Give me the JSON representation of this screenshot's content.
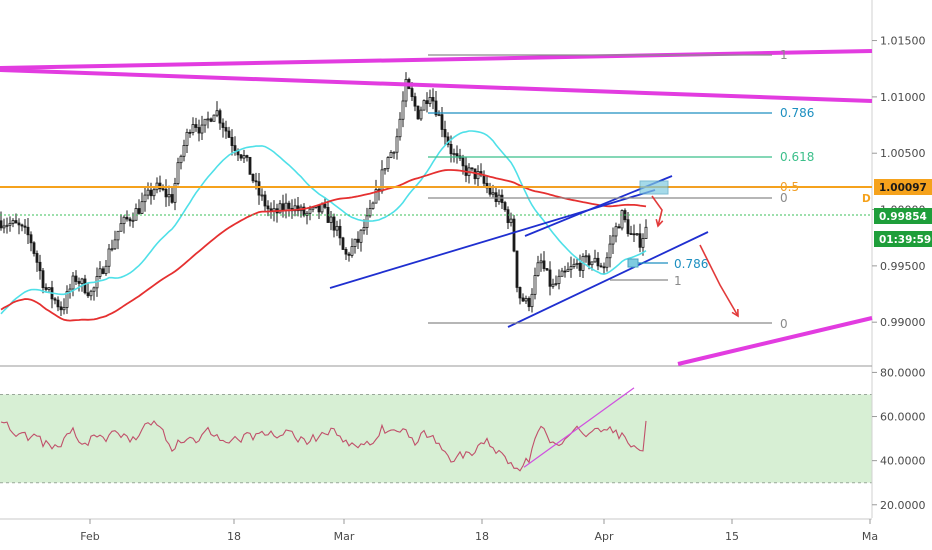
{
  "chart_data": {
    "type": "candlestick",
    "price_axis": {
      "range": [
        0.9862,
        1.0186
      ],
      "ticks": [
        "1.01500",
        "1.01000",
        "1.00500",
        "1.00000",
        "0.99500",
        "0.99000"
      ],
      "tick_values": [
        1.015,
        1.01,
        1.005,
        1.0,
        0.995,
        0.99
      ]
    },
    "time_axis": {
      "labels": [
        "Feb",
        "18",
        "Mar",
        "18",
        "Apr",
        "15",
        "Ma"
      ],
      "label_bar_index": [
        90,
        234,
        344,
        482,
        604,
        732,
        870
      ]
    },
    "badges": {
      "level": "1.00097",
      "last_price": "0.99854",
      "countdown": "01:39:59",
      "level_flag": "D"
    },
    "fib_upper": {
      "levels": [
        {
          "label": "1",
          "price": 1.0122
        },
        {
          "label": "0.786",
          "price": 1.0073
        },
        {
          "label": "0.618",
          "price": 1.0034
        },
        {
          "label": "0.5",
          "price": 1.0009
        },
        {
          "label": "0",
          "price": 0.9991
        }
      ]
    },
    "fib_lower": {
      "levels": [
        {
          "label": "0.786",
          "price": 0.9949
        },
        {
          "label": "1",
          "price": 0.9932
        },
        {
          "label": "0",
          "price": 0.9896
        }
      ]
    },
    "series": [
      {
        "name": "",
        "kind": "sma_fast",
        "color": "#4fe0e8"
      },
      {
        "name": "",
        "kind": "sma_slow",
        "color": "#e53030"
      }
    ],
    "rsi": {
      "range": [
        14,
        82
      ],
      "ticks": [
        "80.0000",
        "60.0000",
        "40.0000",
        "20.0000"
      ],
      "tick_values": [
        80,
        60,
        40,
        20
      ],
      "band": [
        30,
        70
      ],
      "last_value": 58
    }
  },
  "colors": {
    "candle": "#1a1a1a",
    "magenta": "#e23ce0",
    "blue": "#1f2fd0",
    "orange": "#f5a21c",
    "fib_blue": "#1d8fc0",
    "fib_green": "#3bbf8a",
    "fib_orange": "#f0a02a",
    "fib_gray": "#8a8a8a",
    "arrow": "#e23b3b",
    "rsi_line": "#c0506a",
    "rsi_band": "#d7efd4",
    "rsi_trend": "#d050e0",
    "countdown_bg": "#1e9e3a",
    "last_price_bg": "#1e9e3a",
    "level_bg": "#f5a21c"
  }
}
